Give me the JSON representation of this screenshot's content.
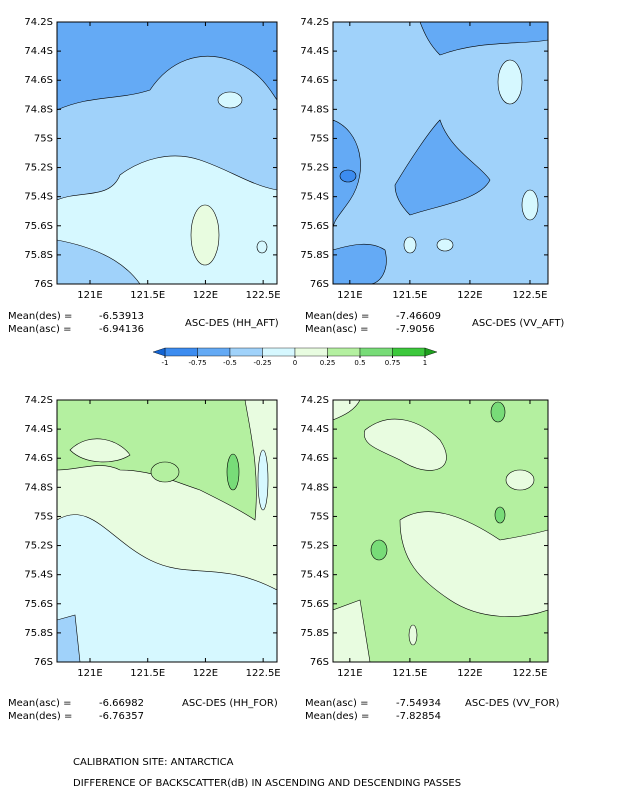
{
  "chart_data": [
    {
      "type": "contour",
      "title": "ASC-DES (HH_AFT)",
      "means": [
        {
          "label": "Mean(des) =",
          "value": -6.53913
        },
        {
          "label": "Mean(asc) =",
          "value": -6.94136
        }
      ],
      "xlim": [
        120.714,
        122.62
      ],
      "ylim": [
        -74.2,
        -76
      ],
      "xticks": [
        {
          "value": 121,
          "label": "121E"
        },
        {
          "value": 121.5,
          "label": "121.5E"
        },
        {
          "value": 122,
          "label": "122E"
        },
        {
          "value": 122.5,
          "label": "122.5E"
        }
      ],
      "yticks": [
        {
          "value": -74.2,
          "label": "74.2S"
        },
        {
          "value": -74.4,
          "label": "74.4S"
        },
        {
          "value": -74.6,
          "label": "74.6S"
        },
        {
          "value": -74.8,
          "label": "74.8S"
        },
        {
          "value": -75,
          "label": "75S"
        },
        {
          "value": -75.2,
          "label": "75.2S"
        },
        {
          "value": -75.4,
          "label": "75.4S"
        },
        {
          "value": -75.6,
          "label": "75.6S"
        },
        {
          "value": -75.8,
          "label": "75.8S"
        },
        {
          "value": -76,
          "label": "76S"
        }
      ]
    },
    {
      "type": "contour",
      "title": "ASC-DES (VV_AFT)",
      "means": [
        {
          "label": "Mean(des) =",
          "value": -7.46609
        },
        {
          "label": "Mean(asc) =",
          "value": -7.9056
        }
      ],
      "xlim": [
        120.86,
        122.65
      ],
      "ylim": [
        -74.2,
        -76
      ],
      "xticks": [
        {
          "value": 121,
          "label": "121E"
        },
        {
          "value": 121.5,
          "label": "121.5E"
        },
        {
          "value": 122,
          "label": "122E"
        },
        {
          "value": 122.5,
          "label": "122.5E"
        }
      ],
      "yticks": [
        {
          "value": -74.2,
          "label": "74.2S"
        },
        {
          "value": -74.4,
          "label": "74.4S"
        },
        {
          "value": -74.6,
          "label": "74.6S"
        },
        {
          "value": -74.8,
          "label": "74.8S"
        },
        {
          "value": -75,
          "label": "75S"
        },
        {
          "value": -75.2,
          "label": "75.2S"
        },
        {
          "value": -75.4,
          "label": "75.4S"
        },
        {
          "value": -75.6,
          "label": "75.6S"
        },
        {
          "value": -75.8,
          "label": "75.8S"
        },
        {
          "value": -76,
          "label": "76S"
        }
      ]
    },
    {
      "type": "contour",
      "title": "ASC-DES (HH_FOR)",
      "means": [
        {
          "label": "Mean(asc) =",
          "value": -6.66982
        },
        {
          "label": "Mean(des) =",
          "value": -6.76357
        }
      ],
      "xlim": [
        120.714,
        122.62
      ],
      "ylim": [
        -74.2,
        -76
      ],
      "xticks": [
        {
          "value": 121,
          "label": "121E"
        },
        {
          "value": 121.5,
          "label": "121.5E"
        },
        {
          "value": 122,
          "label": "122E"
        },
        {
          "value": 122.5,
          "label": "122.5E"
        }
      ],
      "yticks": [
        {
          "value": -74.2,
          "label": "74.2S"
        },
        {
          "value": -74.4,
          "label": "74.4S"
        },
        {
          "value": -74.6,
          "label": "74.6S"
        },
        {
          "value": -74.8,
          "label": "74.8S"
        },
        {
          "value": -75,
          "label": "75S"
        },
        {
          "value": -75.2,
          "label": "75.2S"
        },
        {
          "value": -75.4,
          "label": "75.4S"
        },
        {
          "value": -75.6,
          "label": "75.6S"
        },
        {
          "value": -75.8,
          "label": "75.8S"
        },
        {
          "value": -76,
          "label": "76S"
        }
      ]
    },
    {
      "type": "contour",
      "title": "ASC-DES (VV_FOR)",
      "means": [
        {
          "label": "Mean(asc) =",
          "value": -7.54934
        },
        {
          "label": "Mean(des) =",
          "value": -7.82854
        }
      ],
      "xlim": [
        120.86,
        122.65
      ],
      "ylim": [
        -74.2,
        -76
      ],
      "xticks": [
        {
          "value": 121,
          "label": "121E"
        },
        {
          "value": 121.5,
          "label": "121.5E"
        },
        {
          "value": 122,
          "label": "122E"
        },
        {
          "value": 122.5,
          "label": "122.5E"
        }
      ],
      "yticks": [
        {
          "value": -74.2,
          "label": "74.2S"
        },
        {
          "value": -74.4,
          "label": "74.4S"
        },
        {
          "value": -74.6,
          "label": "74.6S"
        },
        {
          "value": -74.8,
          "label": "74.8S"
        },
        {
          "value": -75,
          "label": "75S"
        },
        {
          "value": -75.2,
          "label": "75.2S"
        },
        {
          "value": -75.4,
          "label": "75.4S"
        },
        {
          "value": -75.6,
          "label": "75.6S"
        },
        {
          "value": -75.8,
          "label": "75.8S"
        },
        {
          "value": -76,
          "label": "76S"
        }
      ]
    }
  ],
  "colorbar": {
    "levels": [
      -1,
      -0.75,
      -0.5,
      -0.25,
      0,
      0.25,
      0.5,
      0.75,
      1
    ],
    "colors": [
      "#1464d2",
      "#3c8cf0",
      "#64aaf5",
      "#a0d2fa",
      "#d6f8ff",
      "#e8fce0",
      "#b4f0a0",
      "#78dc78",
      "#3cc83c",
      "#1ea01e"
    ]
  },
  "footer": {
    "line1": "CALIBRATION SITE: ANTARCTICA",
    "line2": "DIFFERENCE OF BACKSCATTER(dB) IN ASCENDING AND DESCENDING PASSES"
  }
}
